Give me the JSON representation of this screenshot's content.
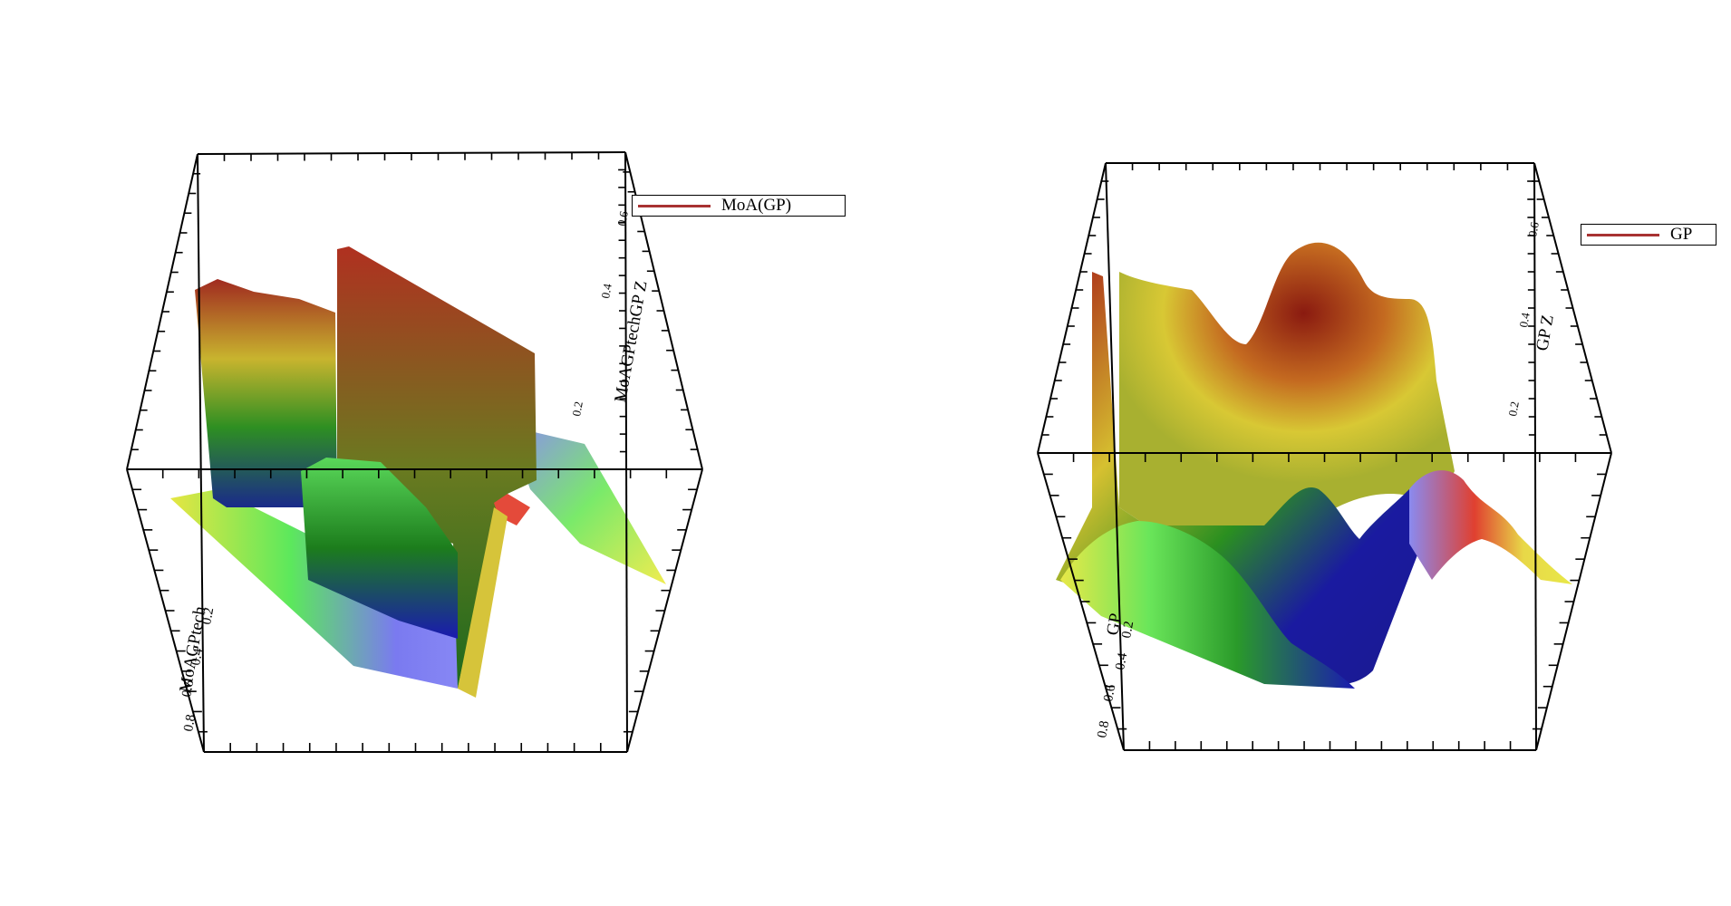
{
  "chart_data": [
    {
      "type": "surface",
      "legend": {
        "label": "MoA(GP)",
        "color": "#a83232",
        "placement": "top-right"
      },
      "axis_labels": {
        "z": "MoAGPtechGP Z",
        "y": "MoAGPtech"
      },
      "y_ticks": [
        "0.2",
        "0.4",
        "0.6",
        "0.8"
      ],
      "z_ticks": [
        "0.2",
        "0.4",
        "0.6"
      ],
      "colormap": [
        "#1a1ad0",
        "#1f8a1f",
        "#e8e84a",
        "#b5281f"
      ],
      "grid": false
    },
    {
      "type": "surface",
      "legend": {
        "label": "GP",
        "color": "#a83232",
        "placement": "top-right"
      },
      "axis_labels": {
        "z": "GP Z",
        "y": "GP"
      },
      "y_ticks": [
        "0.2",
        "0.4",
        "0.6",
        "0.8"
      ],
      "z_ticks": [
        "0.2",
        "0.4",
        "0.6"
      ],
      "colormap": [
        "#1a1ad0",
        "#1f8a1f",
        "#e8e84a",
        "#b5281f"
      ],
      "grid": false
    }
  ]
}
